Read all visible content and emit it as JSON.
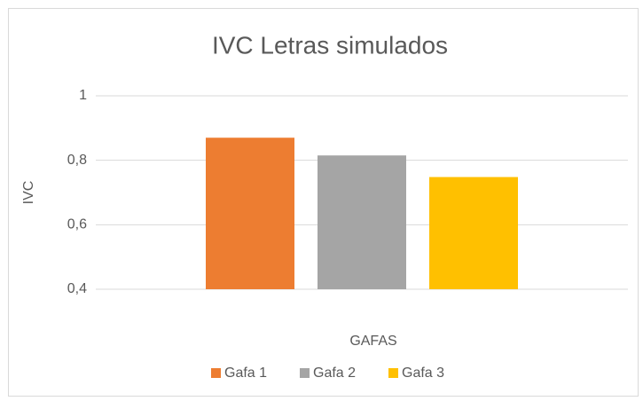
{
  "chart_data": {
    "type": "bar",
    "title": "IVC Letras simulados",
    "categories": [
      null
    ],
    "series": [
      {
        "name": "Gafa 1",
        "color": "#ed7d31",
        "values": [
          0.87
        ]
      },
      {
        "name": "Gafa 2",
        "color": "#a5a5a5",
        "values": [
          0.815
        ]
      },
      {
        "name": "Gafa 3",
        "color": "#ffc000",
        "values": [
          0.748
        ]
      }
    ],
    "xlabel": "GAFAS",
    "ylabel": "IVC",
    "ylim": [
      0.4,
      1
    ],
    "yticks": [
      {
        "value": 0.4,
        "label": "0,4"
      },
      {
        "value": 0.6,
        "label": "0,6"
      },
      {
        "value": 0.8,
        "label": "0,8"
      },
      1
    ],
    "grid": true,
    "legend": "bottom"
  }
}
